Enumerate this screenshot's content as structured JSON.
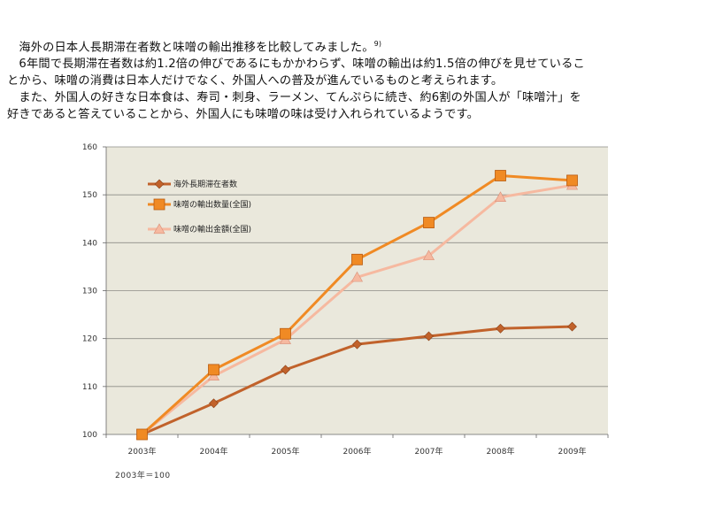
{
  "intro": {
    "line1_main": "　海外の日本人長期滞在者数と味噌の輸出推移を比較してみました。",
    "line1_sup": "9)",
    "line2": "　6年間で長期滞在者数は約1.2倍の伸びであるにもかかわらず、味噌の輸出は約1.5倍の伸びを見せているこ",
    "line3": "とから、味噌の消費は日本人だけでなく、外国人への普及が進んでいるものと考えられます。",
    "line4": "　また、外国人の好きな日本食は、寿司・刺身、ラーメン、てんぷらに続き、約6割の外国人が「味噌汁」を",
    "line5": "好きであると答えていることから、外国人にも味噌の味は受け入れられているようです。"
  },
  "footnote": "2003年＝100",
  "colors": {
    "plot_bg": "#eae8dc",
    "grid": "#8c8c86",
    "series_residents": "#c1622b",
    "series_volume": "#f08a24",
    "series_value": "#f6b9a0"
  },
  "chart_data": {
    "type": "line",
    "categories": [
      "2003年",
      "2004年",
      "2005年",
      "2006年",
      "2007年",
      "2008年",
      "2009年"
    ],
    "ylim": [
      100,
      160
    ],
    "yticks": [
      "100",
      "110",
      "120",
      "130",
      "140",
      "150",
      "160"
    ],
    "grid": true,
    "legend_position": "top-left",
    "series": [
      {
        "name": "海外長期滞在者数",
        "marker": "diamond",
        "values": [
          100,
          106.5,
          113.5,
          118.8,
          120.5,
          122.1,
          122.5
        ]
      },
      {
        "name": "味噌の輸出数量(全国)",
        "marker": "square",
        "values": [
          100,
          113.5,
          121,
          136.5,
          144.2,
          154,
          153
        ]
      },
      {
        "name": "味噌の輸出金額(全国)",
        "marker": "triangle",
        "values": [
          100,
          112.2,
          119.8,
          132.8,
          137.3,
          149.5,
          152
        ]
      }
    ]
  }
}
